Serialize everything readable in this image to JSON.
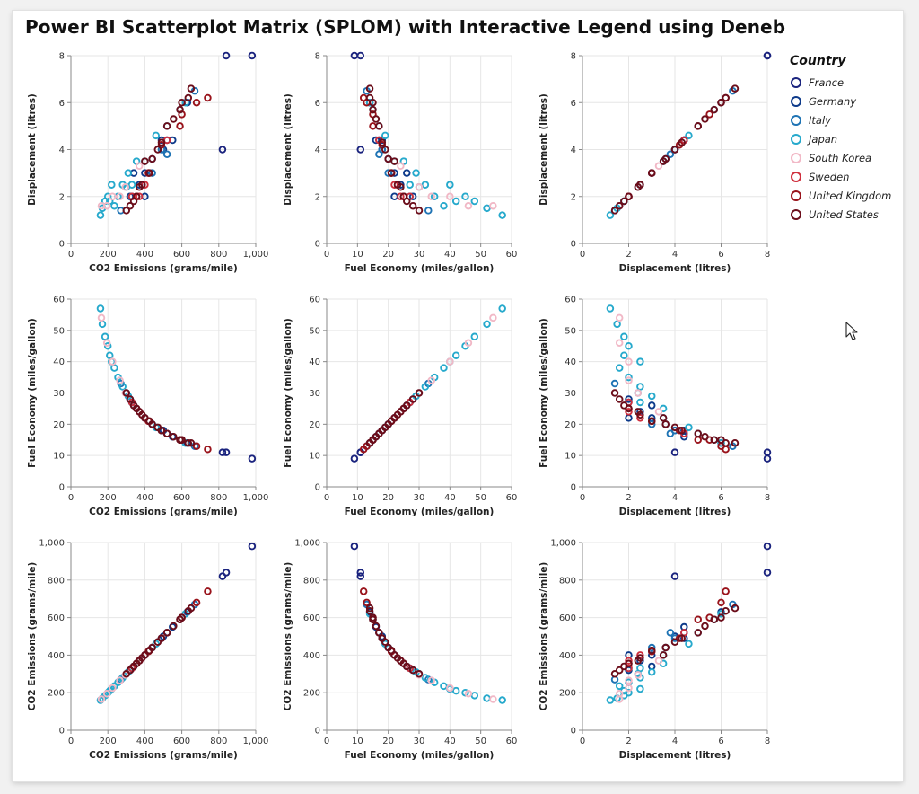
{
  "title": "Power BI Scatterplot Matrix (SPLOM) with Interactive Legend using Deneb",
  "legend": {
    "title": "Country",
    "items": [
      {
        "label": "France",
        "color": "#1a237e"
      },
      {
        "label": "Germany",
        "color": "#0d3a8a"
      },
      {
        "label": "Italy",
        "color": "#1e73b4"
      },
      {
        "label": "Japan",
        "color": "#26a9cc"
      },
      {
        "label": "South Korea",
        "color": "#f1b8c6"
      },
      {
        "label": "Sweden",
        "color": "#cf2f3d"
      },
      {
        "label": "United Kingdom",
        "color": "#99131b"
      },
      {
        "label": "United States",
        "color": "#6b0d1a"
      }
    ]
  },
  "chart_data": {
    "type": "scatter",
    "variables": [
      {
        "key": "co2",
        "label": "CO2 Emissions (grams/mile)",
        "domain": [
          0,
          1000
        ],
        "ticks": [
          0,
          200,
          400,
          600,
          800,
          1000
        ],
        "tick_labels": [
          "0",
          "200",
          "400",
          "600",
          "800",
          "1,000"
        ]
      },
      {
        "key": "mpg",
        "label": "Fuel Economy (miles/gallon)",
        "domain": [
          0,
          60
        ],
        "ticks": [
          0,
          10,
          20,
          30,
          40,
          50,
          60
        ],
        "tick_labels": [
          "0",
          "10",
          "20",
          "30",
          "40",
          "50",
          "60"
        ]
      },
      {
        "key": "disp",
        "label": "Displacement (litres)",
        "domain": [
          0,
          8
        ],
        "ticks": [
          0,
          2,
          4,
          6,
          8
        ],
        "tick_labels": [
          "0",
          "2",
          "4",
          "6",
          "8"
        ]
      }
    ],
    "rows": [
      "disp",
      "mpg",
      "co2"
    ],
    "cols": [
      "co2",
      "mpg",
      "disp"
    ],
    "grid": true,
    "legend_position": "right",
    "points": [
      {
        "country": "France",
        "disp": 8.0,
        "mpg": 9,
        "co2": 980
      },
      {
        "country": "France",
        "disp": 8.0,
        "mpg": 11,
        "co2": 840
      },
      {
        "country": "France",
        "disp": 4.0,
        "mpg": 11,
        "co2": 820
      },
      {
        "country": "France",
        "disp": 4.4,
        "mpg": 17,
        "co2": 520
      },
      {
        "country": "Germany",
        "disp": 2.0,
        "mpg": 22,
        "co2": 400
      },
      {
        "country": "Germany",
        "disp": 2.0,
        "mpg": 28,
        "co2": 320
      },
      {
        "country": "Germany",
        "disp": 3.0,
        "mpg": 22,
        "co2": 400
      },
      {
        "country": "Germany",
        "disp": 3.0,
        "mpg": 26,
        "co2": 340
      },
      {
        "country": "Germany",
        "disp": 4.4,
        "mpg": 18,
        "co2": 490
      },
      {
        "country": "Germany",
        "disp": 4.4,
        "mpg": 16,
        "co2": 550
      },
      {
        "country": "Germany",
        "disp": 6.0,
        "mpg": 14,
        "co2": 630
      },
      {
        "country": "Germany",
        "disp": 3.6,
        "mpg": 20,
        "co2": 440
      },
      {
        "country": "Germany",
        "disp": 2.5,
        "mpg": 24,
        "co2": 370
      },
      {
        "country": "Germany",
        "disp": 4.0,
        "mpg": 18,
        "co2": 500
      },
      {
        "country": "Italy",
        "disp": 3.0,
        "mpg": 20,
        "co2": 440
      },
      {
        "country": "Italy",
        "disp": 4.0,
        "mpg": 18,
        "co2": 490
      },
      {
        "country": "Italy",
        "disp": 6.5,
        "mpg": 13,
        "co2": 670
      },
      {
        "country": "Italy",
        "disp": 3.8,
        "mpg": 17,
        "co2": 520
      },
      {
        "country": "Italy",
        "disp": 1.4,
        "mpg": 33,
        "co2": 270
      },
      {
        "country": "Italy",
        "disp": 2.0,
        "mpg": 27,
        "co2": 330
      },
      {
        "country": "Japan",
        "disp": 1.2,
        "mpg": 57,
        "co2": 160
      },
      {
        "country": "Japan",
        "disp": 1.5,
        "mpg": 52,
        "co2": 170
      },
      {
        "country": "Japan",
        "disp": 1.8,
        "mpg": 48,
        "co2": 185
      },
      {
        "country": "Japan",
        "disp": 2.0,
        "mpg": 45,
        "co2": 200
      },
      {
        "country": "Japan",
        "disp": 2.5,
        "mpg": 40,
        "co2": 220
      },
      {
        "country": "Japan",
        "disp": 1.6,
        "mpg": 38,
        "co2": 235
      },
      {
        "country": "Japan",
        "disp": 2.0,
        "mpg": 35,
        "co2": 255
      },
      {
        "country": "Japan",
        "disp": 2.5,
        "mpg": 32,
        "co2": 280
      },
      {
        "country": "Japan",
        "disp": 3.5,
        "mpg": 25,
        "co2": 355
      },
      {
        "country": "Japan",
        "disp": 3.0,
        "mpg": 29,
        "co2": 310
      },
      {
        "country": "Japan",
        "disp": 2.4,
        "mpg": 30,
        "co2": 300
      },
      {
        "country": "Japan",
        "disp": 1.8,
        "mpg": 42,
        "co2": 210
      },
      {
        "country": "Japan",
        "disp": 5.0,
        "mpg": 17,
        "co2": 520
      },
      {
        "country": "Japan",
        "disp": 5.7,
        "mpg": 15,
        "co2": 590
      },
      {
        "country": "Japan",
        "disp": 6.0,
        "mpg": 14,
        "co2": 620
      },
      {
        "country": "Japan",
        "disp": 4.6,
        "mpg": 19,
        "co2": 460
      },
      {
        "country": "Japan",
        "disp": 3.5,
        "mpg": 22,
        "co2": 400
      },
      {
        "country": "Japan",
        "disp": 2.5,
        "mpg": 27,
        "co2": 330
      },
      {
        "country": "South Korea",
        "disp": 1.6,
        "mpg": 54,
        "co2": 165
      },
      {
        "country": "South Korea",
        "disp": 1.6,
        "mpg": 46,
        "co2": 195
      },
      {
        "country": "South Korea",
        "disp": 2.0,
        "mpg": 34,
        "co2": 265
      },
      {
        "country": "South Korea",
        "disp": 2.4,
        "mpg": 30,
        "co2": 295
      },
      {
        "country": "South Korea",
        "disp": 3.3,
        "mpg": 24,
        "co2": 370
      },
      {
        "country": "South Korea",
        "disp": 2.0,
        "mpg": 40,
        "co2": 225
      },
      {
        "country": "Sweden",
        "disp": 2.0,
        "mpg": 27,
        "co2": 330
      },
      {
        "country": "Sweden",
        "disp": 2.0,
        "mpg": 24,
        "co2": 370
      },
      {
        "country": "Sweden",
        "disp": 2.5,
        "mpg": 22,
        "co2": 400
      },
      {
        "country": "Sweden",
        "disp": 3.0,
        "mpg": 21,
        "co2": 420
      },
      {
        "country": "Sweden",
        "disp": 4.4,
        "mpg": 17,
        "co2": 520
      },
      {
        "country": "United Kingdom",
        "disp": 5.0,
        "mpg": 15,
        "co2": 590
      },
      {
        "country": "United Kingdom",
        "disp": 6.0,
        "mpg": 13,
        "co2": 680
      },
      {
        "country": "United Kingdom",
        "disp": 3.0,
        "mpg": 21,
        "co2": 420
      },
      {
        "country": "United Kingdom",
        "disp": 4.2,
        "mpg": 18,
        "co2": 490
      },
      {
        "country": "United Kingdom",
        "disp": 6.2,
        "mpg": 12,
        "co2": 740
      },
      {
        "country": "United Kingdom",
        "disp": 5.5,
        "mpg": 15,
        "co2": 600
      },
      {
        "country": "United Kingdom",
        "disp": 2.0,
        "mpg": 25,
        "co2": 355
      },
      {
        "country": "United States",
        "disp": 1.4,
        "mpg": 30,
        "co2": 300
      },
      {
        "country": "United States",
        "disp": 1.6,
        "mpg": 28,
        "co2": 320
      },
      {
        "country": "United States",
        "disp": 2.0,
        "mpg": 25,
        "co2": 355
      },
      {
        "country": "United States",
        "disp": 2.5,
        "mpg": 23,
        "co2": 385
      },
      {
        "country": "United States",
        "disp": 3.6,
        "mpg": 20,
        "co2": 440
      },
      {
        "country": "United States",
        "disp": 4.3,
        "mpg": 18,
        "co2": 490
      },
      {
        "country": "United States",
        "disp": 5.3,
        "mpg": 16,
        "co2": 555
      },
      {
        "country": "United States",
        "disp": 5.7,
        "mpg": 15,
        "co2": 590
      },
      {
        "country": "United States",
        "disp": 6.2,
        "mpg": 14,
        "co2": 635
      },
      {
        "country": "United States",
        "disp": 6.6,
        "mpg": 14,
        "co2": 650
      },
      {
        "country": "United States",
        "disp": 3.5,
        "mpg": 22,
        "co2": 400
      },
      {
        "country": "United States",
        "disp": 2.4,
        "mpg": 24,
        "co2": 370
      },
      {
        "country": "United States",
        "disp": 3.0,
        "mpg": 21,
        "co2": 425
      },
      {
        "country": "United States",
        "disp": 4.0,
        "mpg": 19,
        "co2": 470
      },
      {
        "country": "United States",
        "disp": 5.0,
        "mpg": 17,
        "co2": 520
      },
      {
        "country": "United States",
        "disp": 6.0,
        "mpg": 15,
        "co2": 600
      },
      {
        "country": "United States",
        "disp": 1.8,
        "mpg": 26,
        "co2": 340
      }
    ]
  }
}
